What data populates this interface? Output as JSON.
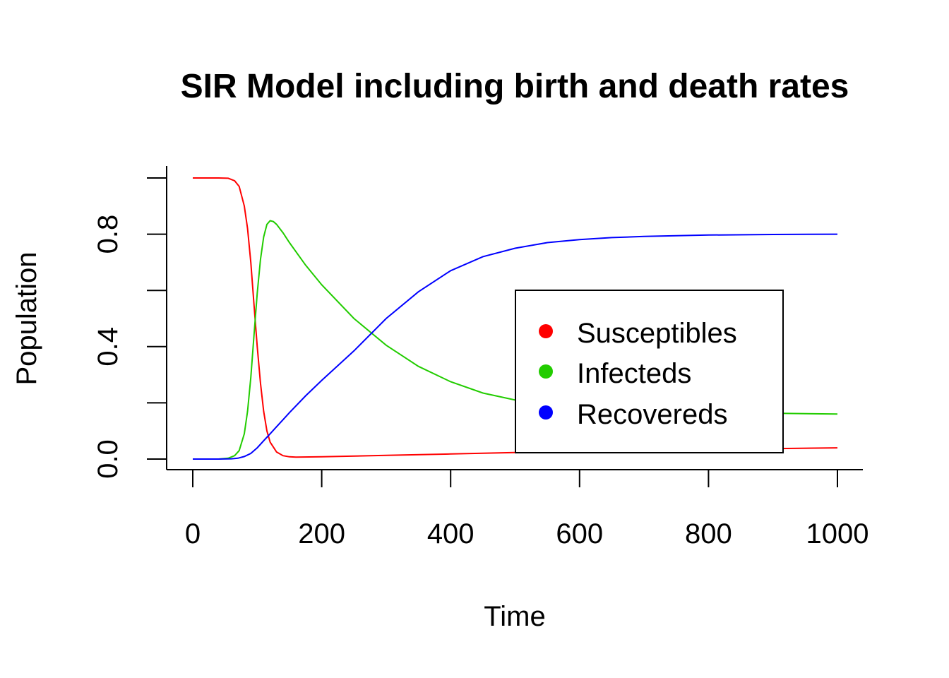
{
  "chart_data": {
    "type": "line",
    "title": "SIR Model including birth and death rates",
    "xlabel": "Time",
    "ylabel": "Population",
    "xlim": [
      0,
      1000
    ],
    "ylim": [
      0,
      1
    ],
    "x_ticks": [
      0,
      200,
      400,
      600,
      800,
      1000
    ],
    "x_tick_labels": [
      "0",
      "200",
      "400",
      "600",
      "800",
      "1000"
    ],
    "y_ticks": [
      0,
      0.2,
      0.4,
      0.6,
      0.8,
      1.0
    ],
    "y_tick_labels": [
      "0.0",
      "",
      "0.4",
      "",
      "0.8",
      ""
    ],
    "grid": false,
    "legend_position": "center-right",
    "series": [
      {
        "name": "Susceptibles",
        "color": "#ff0000",
        "x": [
          0,
          40,
          55,
          65,
          72,
          80,
          85,
          90,
          95,
          100,
          105,
          110,
          115,
          120,
          130,
          140,
          150,
          160,
          200,
          300,
          400,
          500,
          600,
          700,
          800,
          900,
          1000
        ],
        "y": [
          1.0,
          1.0,
          0.999,
          0.99,
          0.97,
          0.9,
          0.82,
          0.7,
          0.55,
          0.4,
          0.27,
          0.17,
          0.1,
          0.06,
          0.025,
          0.012,
          0.008,
          0.007,
          0.008,
          0.013,
          0.018,
          0.023,
          0.027,
          0.031,
          0.034,
          0.037,
          0.04
        ]
      },
      {
        "name": "Infecteds",
        "color": "#22cc00",
        "x": [
          0,
          40,
          55,
          65,
          72,
          80,
          85,
          90,
          95,
          100,
          105,
          110,
          115,
          120,
          125,
          130,
          140,
          150,
          175,
          200,
          250,
          300,
          350,
          400,
          450,
          500,
          550,
          600,
          650,
          700,
          800,
          900,
          1000
        ],
        "y": [
          0.0,
          0.0,
          0.003,
          0.012,
          0.03,
          0.09,
          0.17,
          0.29,
          0.44,
          0.59,
          0.71,
          0.79,
          0.835,
          0.848,
          0.845,
          0.835,
          0.805,
          0.77,
          0.69,
          0.62,
          0.5,
          0.405,
          0.33,
          0.275,
          0.235,
          0.21,
          0.193,
          0.182,
          0.175,
          0.171,
          0.166,
          0.163,
          0.16
        ]
      },
      {
        "name": "Recovereds",
        "color": "#0000ff",
        "x": [
          0,
          40,
          60,
          70,
          80,
          90,
          100,
          110,
          120,
          130,
          140,
          150,
          175,
          200,
          250,
          300,
          350,
          400,
          450,
          500,
          550,
          600,
          650,
          700,
          800,
          900,
          1000
        ],
        "y": [
          0.0,
          0.0,
          0.001,
          0.003,
          0.009,
          0.02,
          0.04,
          0.065,
          0.09,
          0.115,
          0.14,
          0.165,
          0.225,
          0.28,
          0.385,
          0.5,
          0.595,
          0.67,
          0.72,
          0.75,
          0.77,
          0.781,
          0.788,
          0.792,
          0.797,
          0.799,
          0.8
        ]
      }
    ]
  }
}
